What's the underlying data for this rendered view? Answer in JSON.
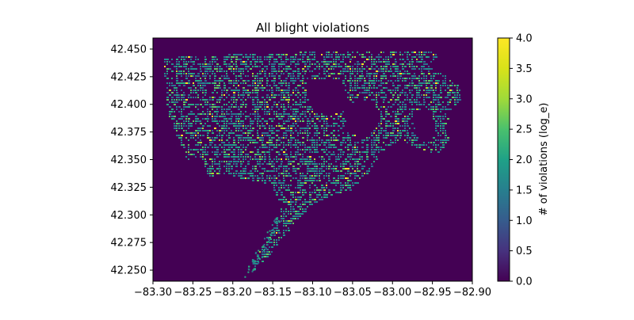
{
  "chart_data": {
    "type": "heatmap",
    "title": "All blight violations",
    "xlabel": "",
    "ylabel": "",
    "xlim": [
      -83.3,
      -82.9
    ],
    "ylim": [
      42.24,
      42.46
    ],
    "x_ticks": [
      "-83.30",
      "-83.25",
      "-83.20",
      "-83.15",
      "-83.10",
      "-83.05",
      "-83.00",
      "-82.95",
      "-82.90"
    ],
    "x_tick_values": [
      -83.3,
      -83.25,
      -83.2,
      -83.15,
      -83.1,
      -83.05,
      -83.0,
      -82.95,
      -82.9
    ],
    "y_ticks": [
      "42.250",
      "42.275",
      "42.300",
      "42.325",
      "42.350",
      "42.375",
      "42.400",
      "42.425",
      "42.450"
    ],
    "y_tick_values": [
      42.25,
      42.275,
      42.3,
      42.325,
      42.35,
      42.375,
      42.4,
      42.425,
      42.45
    ],
    "colorbar": {
      "label": "# of violations (log_e)",
      "min": 0.0,
      "max": 4.0,
      "ticks": [
        "0.0",
        "0.5",
        "1.0",
        "1.5",
        "2.0",
        "2.5",
        "3.0",
        "3.5",
        "4.0"
      ],
      "tick_values": [
        0.0,
        0.5,
        1.0,
        1.5,
        2.0,
        2.5,
        3.0,
        3.5,
        4.0
      ],
      "colormap": "viridis"
    },
    "background_value": 0.0,
    "grid": false,
    "colors": {
      "low": "#440154",
      "mid": "#21918c",
      "high": "#fde725"
    }
  }
}
